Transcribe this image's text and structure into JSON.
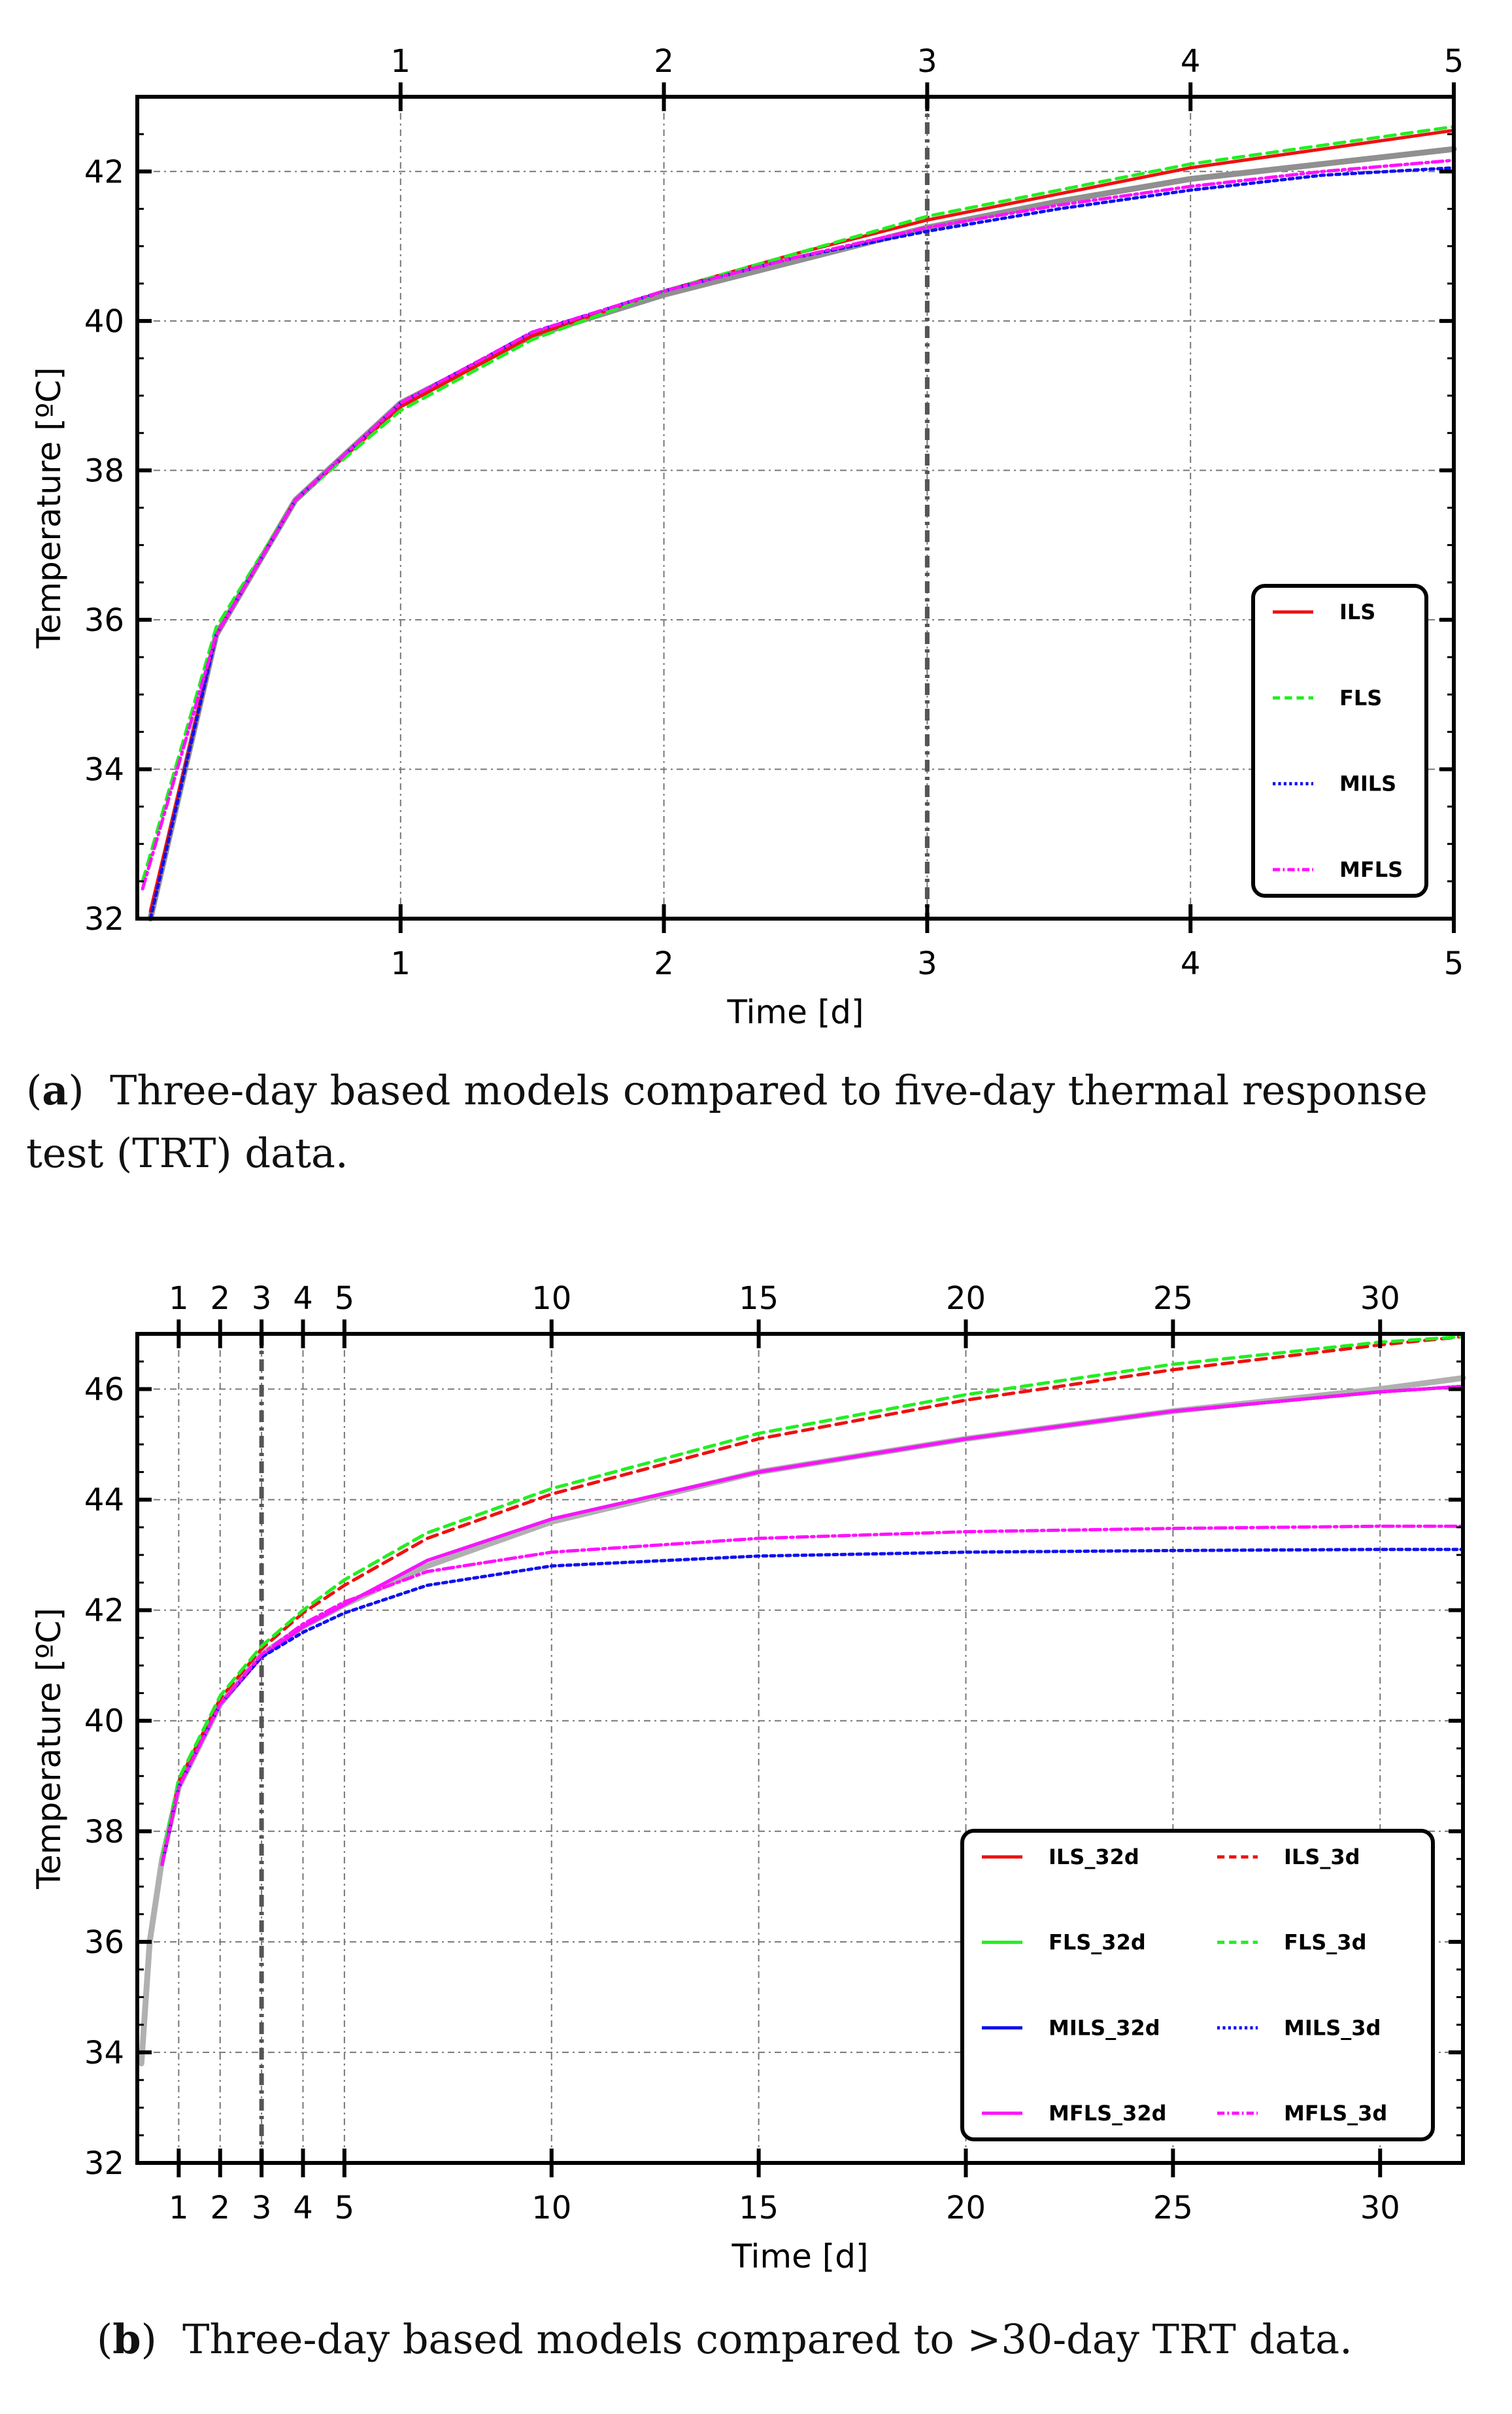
{
  "captions": {
    "a": {
      "tag": "a",
      "text": "Three-day based models compared to five-day thermal response test (TRT) data."
    },
    "b": {
      "tag": "b",
      "text": "Three-day based models compared to >30-day TRT data."
    }
  },
  "colors": {
    "ILS": "#ee1111",
    "FLS": "#22ee22",
    "MILS": "#1111ee",
    "MFLS": "#ff11ff",
    "measured": "#909090",
    "measured_b": "#b0b0b0"
  },
  "chart_data": [
    {
      "id": "a",
      "type": "line",
      "title": "",
      "xlabel": "Time [d]",
      "ylabel": "Temperature [ºC]",
      "xlim": [
        0,
        5
      ],
      "ylim": [
        32,
        43
      ],
      "xticks": [
        1,
        2,
        3,
        4,
        5
      ],
      "yticks": [
        32,
        34,
        36,
        38,
        40,
        42
      ],
      "grid": true,
      "vline_x": 3,
      "legend": {
        "placement": "lower-right",
        "columns": 1
      },
      "series": [
        {
          "name": "measured",
          "legend": "",
          "color": "#909090",
          "dash": "",
          "x": [
            0.05,
            0.3,
            0.6,
            1,
            1.5,
            2,
            2.5,
            3,
            3.5,
            4,
            4.5,
            5
          ],
          "y": [
            32.0,
            35.8,
            37.6,
            38.9,
            39.8,
            40.35,
            40.8,
            41.25,
            41.6,
            41.9,
            42.1,
            42.3
          ]
        },
        {
          "name": "ILS",
          "legend": "ILS",
          "color": "#ee1111",
          "dash": "",
          "x": [
            0.05,
            0.3,
            0.6,
            1,
            1.5,
            2,
            2.5,
            3,
            3.5,
            4,
            4.5,
            5
          ],
          "y": [
            32.1,
            35.8,
            37.6,
            38.85,
            39.8,
            40.4,
            40.9,
            41.35,
            41.7,
            42.05,
            42.3,
            42.55
          ]
        },
        {
          "name": "FLS",
          "legend": "FLS",
          "color": "#22ee22",
          "dash": "16 10",
          "x": [
            0.02,
            0.3,
            0.6,
            1,
            1.5,
            2,
            2.5,
            3,
            3.5,
            4,
            4.5,
            5
          ],
          "y": [
            32.5,
            35.9,
            37.6,
            38.8,
            39.75,
            40.4,
            40.9,
            41.4,
            41.75,
            42.1,
            42.35,
            42.6
          ]
        },
        {
          "name": "MILS",
          "legend": "MILS",
          "color": "#1111ee",
          "dash": "6 6",
          "x": [
            0.05,
            0.3,
            0.6,
            1,
            1.5,
            2,
            2.5,
            3,
            3.5,
            4,
            4.5,
            5
          ],
          "y": [
            32.0,
            35.8,
            37.6,
            38.9,
            39.85,
            40.4,
            40.85,
            41.2,
            41.5,
            41.75,
            41.95,
            42.05
          ]
        },
        {
          "name": "MFLS",
          "legend": "MFLS",
          "color": "#ff11ff",
          "dash": "16 6 4 6",
          "x": [
            0.02,
            0.3,
            0.6,
            1,
            1.5,
            2,
            2.5,
            3,
            3.5,
            4,
            4.5,
            5
          ],
          "y": [
            32.4,
            35.8,
            37.6,
            38.9,
            39.85,
            40.4,
            40.85,
            41.25,
            41.55,
            41.8,
            42.0,
            42.15
          ]
        }
      ]
    },
    {
      "id": "b",
      "type": "line",
      "title": "",
      "xlabel": "Time [d]",
      "ylabel": "Temperature [ºC]",
      "xlim": [
        0,
        32
      ],
      "ylim": [
        32,
        47
      ],
      "xticks": [
        1,
        2,
        3,
        4,
        5,
        10,
        15,
        20,
        25,
        30
      ],
      "yticks": [
        32,
        34,
        36,
        38,
        40,
        42,
        44,
        46
      ],
      "grid": true,
      "vline_x": 3,
      "legend": {
        "placement": "lower-right",
        "columns": 2
      },
      "series": [
        {
          "name": "measured",
          "legend": "",
          "color": "#b0b0b0",
          "dash": "",
          "x": [
            0.1,
            0.3,
            0.6,
            1,
            2,
            3,
            4,
            5,
            7,
            10,
            15,
            20,
            25,
            30,
            32
          ],
          "y": [
            33.8,
            36.0,
            37.5,
            38.8,
            40.3,
            41.2,
            41.7,
            42.1,
            42.8,
            43.6,
            44.5,
            45.1,
            45.6,
            46.0,
            46.2
          ]
        },
        {
          "name": "ILS_32d",
          "legend": "ILS_32d",
          "color": "#ee1111",
          "dash": "",
          "x": [
            0.6,
            1,
            2,
            3,
            4,
            5,
            7,
            10,
            15,
            20,
            25,
            30,
            32
          ],
          "y": [
            37.4,
            38.8,
            40.3,
            41.15,
            41.7,
            42.1,
            42.9,
            43.65,
            44.5,
            45.1,
            45.6,
            45.95,
            46.05
          ]
        },
        {
          "name": "FLS_32d",
          "legend": "FLS_32d",
          "color": "#22ee22",
          "dash": "",
          "x": [
            0.6,
            1,
            2,
            3,
            4,
            5,
            7,
            10,
            15,
            20,
            25,
            30,
            32
          ],
          "y": [
            37.4,
            38.8,
            40.3,
            41.15,
            41.7,
            42.1,
            42.9,
            43.65,
            44.5,
            45.1,
            45.6,
            45.95,
            46.05
          ]
        },
        {
          "name": "MILS_32d",
          "legend": "MILS_32d",
          "color": "#1111ee",
          "dash": "",
          "x": [
            0.6,
            1,
            2,
            3,
            4,
            5,
            7,
            10,
            15,
            20,
            25,
            30,
            32
          ],
          "y": [
            37.4,
            38.8,
            40.3,
            41.15,
            41.7,
            42.1,
            42.9,
            43.65,
            44.5,
            45.1,
            45.6,
            45.95,
            46.05
          ]
        },
        {
          "name": "MFLS_32d",
          "legend": "MFLS_32d",
          "color": "#ff11ff",
          "dash": "",
          "x": [
            0.6,
            1,
            2,
            3,
            4,
            5,
            7,
            10,
            15,
            20,
            25,
            30,
            32
          ],
          "y": [
            37.4,
            38.8,
            40.3,
            41.15,
            41.7,
            42.1,
            42.9,
            43.65,
            44.5,
            45.1,
            45.6,
            45.95,
            46.05
          ]
        },
        {
          "name": "ILS_3d",
          "legend": "ILS_3d",
          "color": "#ee1111",
          "dash": "16 10",
          "x": [
            0.6,
            1,
            2,
            3,
            4,
            5,
            7,
            10,
            15,
            20,
            25,
            30,
            32
          ],
          "y": [
            37.4,
            38.9,
            40.4,
            41.3,
            41.95,
            42.45,
            43.3,
            44.1,
            45.1,
            45.8,
            46.35,
            46.8,
            46.95
          ]
        },
        {
          "name": "FLS_3d",
          "legend": "FLS_3d",
          "color": "#22ee22",
          "dash": "16 10",
          "x": [
            0.6,
            1,
            2,
            3,
            4,
            5,
            7,
            10,
            15,
            20,
            25,
            30,
            32
          ],
          "y": [
            37.5,
            38.95,
            40.45,
            41.35,
            42.0,
            42.55,
            43.4,
            44.2,
            45.2,
            45.9,
            46.45,
            46.85,
            46.95
          ]
        },
        {
          "name": "MILS_3d",
          "legend": "MILS_3d",
          "color": "#1111ee",
          "dash": "6 6",
          "x": [
            0.6,
            1,
            2,
            3,
            4,
            5,
            7,
            10,
            15,
            20,
            25,
            30,
            32
          ],
          "y": [
            37.4,
            38.8,
            40.3,
            41.15,
            41.6,
            41.95,
            42.45,
            42.8,
            42.98,
            43.05,
            43.08,
            43.1,
            43.1
          ]
        },
        {
          "name": "MFLS_3d",
          "legend": "MFLS_3d",
          "color": "#ff11ff",
          "dash": "16 6 4 6",
          "x": [
            0.6,
            1,
            2,
            3,
            4,
            5,
            7,
            10,
            15,
            20,
            25,
            30,
            32
          ],
          "y": [
            37.4,
            38.8,
            40.3,
            41.2,
            41.75,
            42.15,
            42.7,
            43.05,
            43.3,
            43.42,
            43.48,
            43.52,
            43.52
          ]
        }
      ]
    }
  ]
}
